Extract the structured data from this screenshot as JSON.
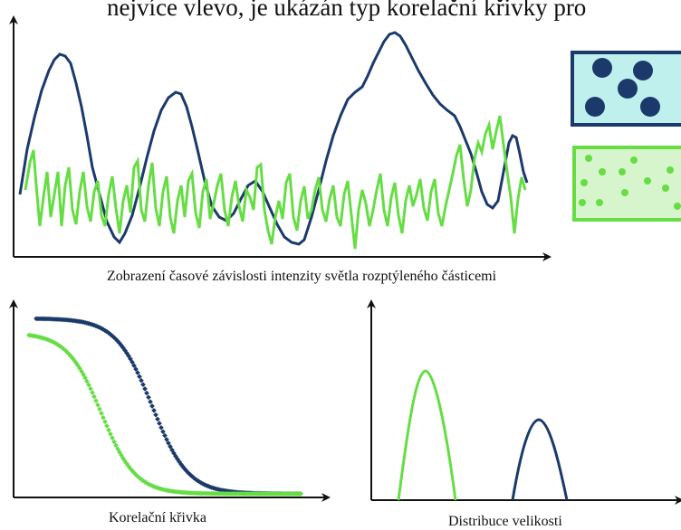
{
  "header_text": "nejvíce vlevo, je ukázán typ korelační křivky pro",
  "captions": {
    "intensity": "Zobrazení časové závislosti intenzity světla rozptýleného částicemi",
    "correlation": "Korelační křivka",
    "distribution": "Distribuce velikosti"
  },
  "colors": {
    "large_particles": "#1b3a6b",
    "small_particles": "#66dd44",
    "box_large_fill": "#bff0ee",
    "box_small_fill": "#d6f5cc",
    "axis": "#111111"
  },
  "samples": {
    "large_particles_box": {
      "dot_count": 5
    },
    "small_particles_box": {
      "dot_count": 12
    }
  }
}
